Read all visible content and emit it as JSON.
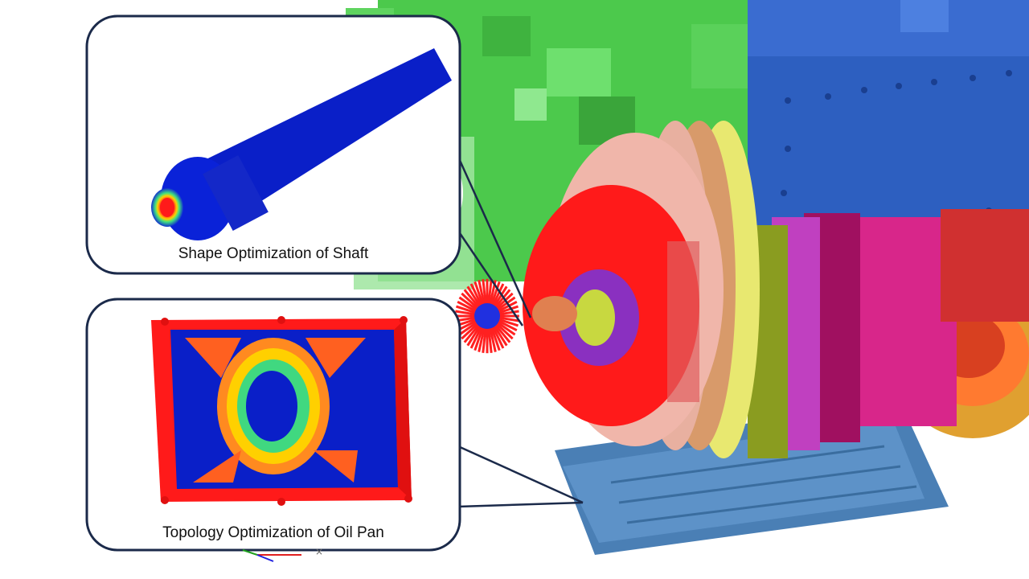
{
  "callouts": [
    {
      "caption": "Shape Optimization of Shaft"
    },
    {
      "caption": "Topology Optimization of Oil Pan"
    }
  ],
  "colors": {
    "frame": "#1b2a4a",
    "housing_green": "#4cc94c",
    "housing_blue": "#2d5fc0",
    "oil_pan_blue": "#4a7fb5",
    "stress_red": "#ff1a1a",
    "stress_blue": "#0a1fc8",
    "flange_orange": "#e0a030"
  },
  "icons": [
    "axis-triad-icon"
  ]
}
